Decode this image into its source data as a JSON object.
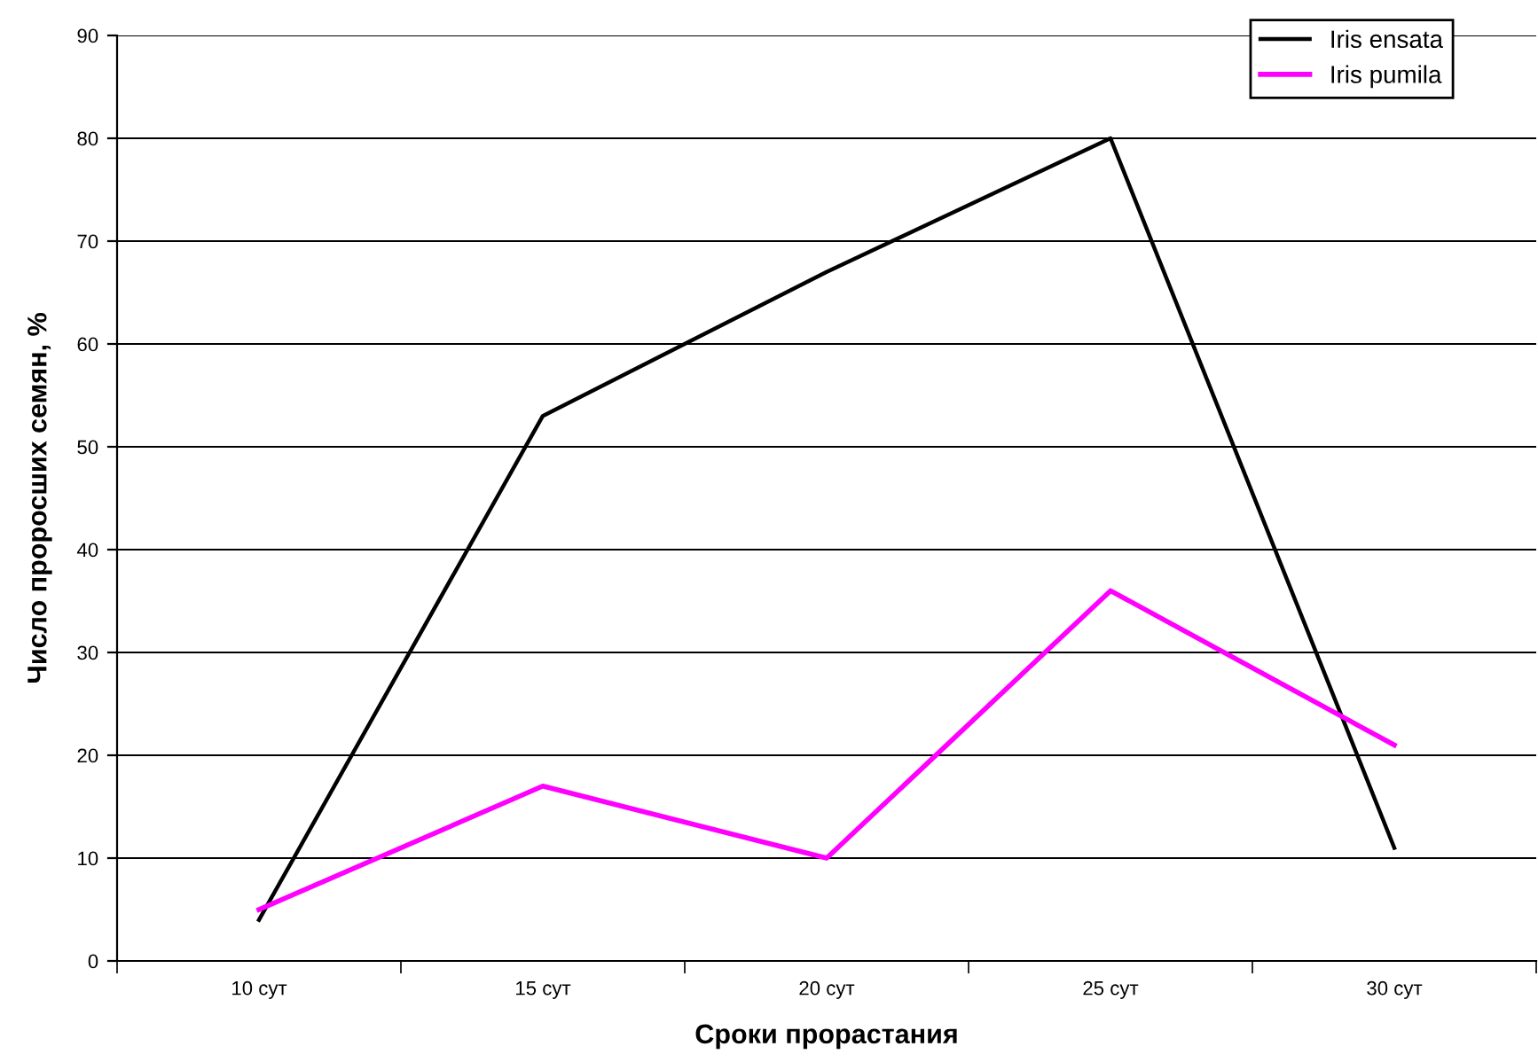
{
  "chart_data": {
    "type": "line",
    "xlabel": "Сроки прорастания",
    "ylabel": "Число проросших семян, %",
    "categories": [
      "10 сут",
      "15 сут",
      "20 сут",
      "25 сут",
      "30 сут"
    ],
    "series": [
      {
        "name": "Iris ensata",
        "color": "#000000",
        "values": [
          4,
          53,
          67,
          80,
          11
        ]
      },
      {
        "name": "Iris pumila",
        "color": "#ff00ff",
        "values": [
          5,
          17,
          10,
          36,
          21
        ]
      }
    ],
    "ylim": [
      0,
      90
    ],
    "yticks": [
      0,
      10,
      20,
      30,
      40,
      50,
      60,
      70,
      80,
      90
    ],
    "grid": "y",
    "legend": "top right",
    "marker": "none",
    "line_style": "solid"
  }
}
